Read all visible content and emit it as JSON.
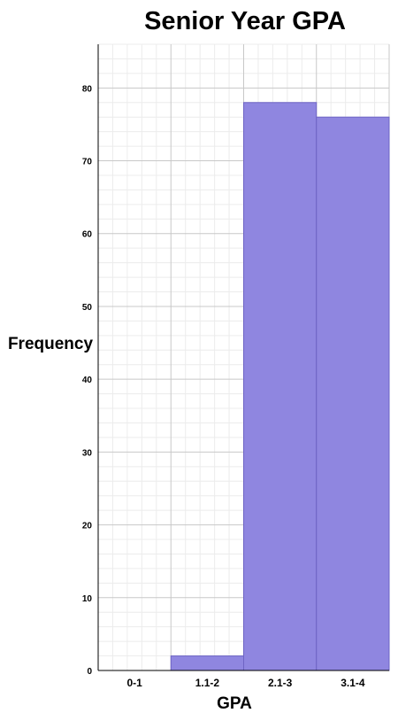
{
  "chart_data": {
    "type": "bar",
    "title": "Senior Year GPA",
    "xlabel": "GPA",
    "ylabel": "Frequency",
    "categories": [
      "0-1",
      "1.1-2",
      "2.1-3",
      "3.1-4"
    ],
    "values": [
      0,
      2,
      78,
      76
    ],
    "ylim": [
      0,
      86
    ],
    "yticks": [
      0,
      10,
      20,
      30,
      40,
      50,
      60,
      70,
      80
    ],
    "grid": true,
    "legend": "none",
    "colors": {
      "bar_fill": "#8f86e0",
      "bar_stroke": "#6e64c4",
      "grid_major": "#c8c8c8",
      "grid_minor": "#ececec",
      "axis": "#000000"
    }
  }
}
